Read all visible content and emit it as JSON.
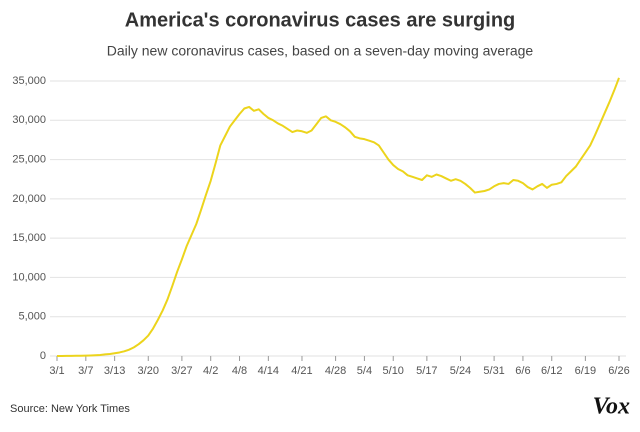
{
  "chart_data": {
    "type": "line",
    "title": "America's coronavirus cases are surging",
    "subtitle": "Daily new coronavirus cases, based on a seven-day moving average",
    "source": "Source: New York Times",
    "logo": "Vox",
    "color": "#ecd41c",
    "grid": true,
    "ylim": [
      0,
      35000
    ],
    "yticks": [
      0,
      {
        "value": 5000,
        "label": "5,000"
      },
      {
        "value": 10000,
        "label": "10,000"
      },
      {
        "value": 15000,
        "label": "15,000"
      },
      {
        "value": 20000,
        "label": "20,000"
      },
      {
        "value": 25000,
        "label": "25,000"
      },
      {
        "value": 30000,
        "label": "30,000"
      },
      {
        "value": 35000,
        "label": "35,000"
      }
    ],
    "categories": [
      "3/1",
      null,
      null,
      null,
      null,
      null,
      "3/7",
      null,
      null,
      null,
      null,
      null,
      "3/13",
      null,
      null,
      null,
      null,
      null,
      null,
      "3/20",
      null,
      null,
      null,
      null,
      null,
      null,
      "3/27",
      null,
      null,
      null,
      null,
      null,
      "4/2",
      null,
      null,
      null,
      null,
      null,
      "4/8",
      null,
      null,
      null,
      null,
      null,
      "4/14",
      null,
      null,
      null,
      null,
      null,
      null,
      "4/21",
      null,
      null,
      null,
      null,
      null,
      null,
      "4/28",
      null,
      null,
      null,
      null,
      null,
      "5/4",
      null,
      null,
      null,
      null,
      null,
      "5/10",
      null,
      null,
      null,
      null,
      null,
      null,
      "5/17",
      null,
      null,
      null,
      null,
      null,
      null,
      "5/24",
      null,
      null,
      null,
      null,
      null,
      null,
      "5/31",
      null,
      null,
      null,
      null,
      null,
      "6/6",
      null,
      null,
      null,
      null,
      null,
      "6/12",
      null,
      null,
      null,
      null,
      null,
      null,
      "6/19",
      null,
      null,
      null,
      null,
      null,
      null,
      "6/26"
    ],
    "values": [
      0,
      0,
      10,
      20,
      30,
      40,
      50,
      70,
      100,
      130,
      200,
      250,
      350,
      450,
      600,
      800,
      1100,
      1500,
      2000,
      2600,
      3500,
      4600,
      5800,
      7200,
      8900,
      10700,
      12300,
      14000,
      15400,
      16800,
      18600,
      20500,
      22300,
      24500,
      26800,
      28000,
      29200,
      30000,
      30800,
      31500,
      31700,
      31200,
      31400,
      30800,
      30300,
      30000,
      29600,
      29300,
      28900,
      28500,
      28700,
      28600,
      28400,
      28700,
      29500,
      30300,
      30500,
      30000,
      29800,
      29500,
      29100,
      28600,
      27900,
      27700,
      27600,
      27400,
      27200,
      26800,
      25900,
      25000,
      24300,
      23800,
      23500,
      23000,
      22800,
      22600,
      22400,
      23000,
      22800,
      23100,
      22900,
      22600,
      22300,
      22500,
      22300,
      21900,
      21400,
      20800,
      20900,
      21000,
      21200,
      21600,
      21900,
      22000,
      21900,
      22400,
      22300,
      22000,
      21500,
      21200,
      21600,
      21900,
      21400,
      21800,
      21900,
      22100,
      22900,
      23500,
      24100,
      25000,
      25900,
      26800,
      28100,
      29500,
      30900,
      32300,
      33800,
      35400
    ]
  }
}
